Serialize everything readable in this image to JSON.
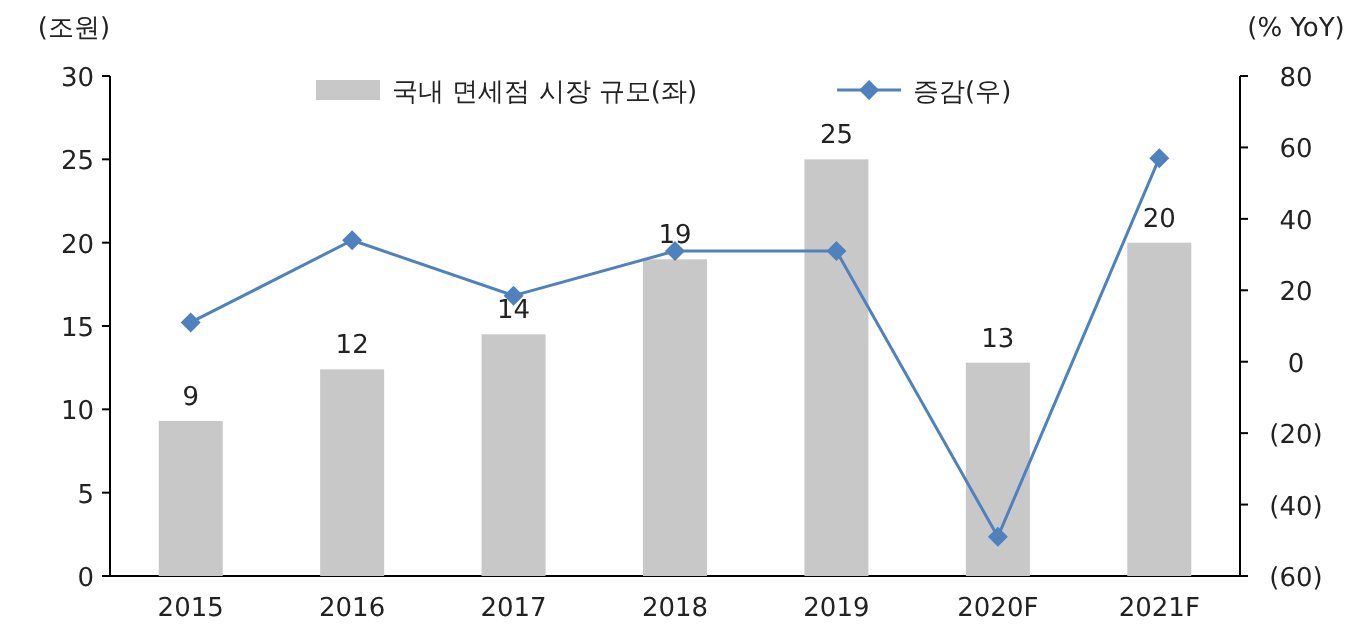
{
  "chart_data": {
    "type": "bar",
    "categories": [
      "2015",
      "2016",
      "2017",
      "2018",
      "2019",
      "2020F",
      "2021F"
    ],
    "ylabel": "(조원)",
    "y2label": "(% YoY)",
    "ylim": [
      0,
      30
    ],
    "yticks": [
      0,
      5,
      10,
      15,
      20,
      25,
      30
    ],
    "y2lim": [
      -60,
      80
    ],
    "y2ticks": [
      {
        "value": -60,
        "label": "(60)"
      },
      {
        "value": -40,
        "label": "(40)"
      },
      {
        "value": -20,
        "label": "(20)"
      },
      0,
      20,
      40,
      60,
      80
    ],
    "series": [
      {
        "name": "국내 면세점 시장 규모(좌)",
        "color": "#c8c8c8",
        "values": [
          9.3,
          12.4,
          14.5,
          19,
          25,
          12.8,
          20
        ],
        "value_labels": [
          "9",
          "12",
          "14",
          "19",
          "25",
          "13",
          "20"
        ]
      },
      {
        "name": "증감(우)",
        "type": "line",
        "axis": "y2",
        "color": "#4f81bd",
        "marker": "diamond",
        "values": [
          11,
          34,
          18.5,
          31,
          31,
          -49,
          57
        ]
      }
    ],
    "legend": "top",
    "grid": false
  }
}
